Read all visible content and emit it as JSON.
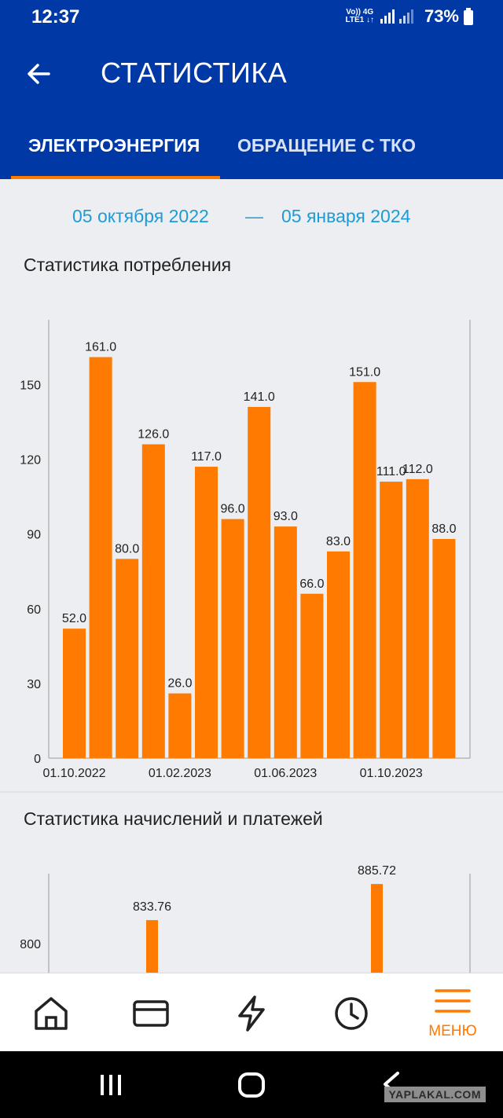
{
  "status_bar": {
    "time": "12:37",
    "net_top": "Vo)) 4G",
    "net_bottom": "LTE1 ↓↑",
    "battery": "73%"
  },
  "app_bar": {
    "title": "СТАТИСТИКА",
    "tabs": [
      {
        "label": "ЭЛЕКТРОЭНЕРГИЯ",
        "active": true
      },
      {
        "label": "ОБРАЩЕНИЕ С ТКО",
        "active": false
      }
    ]
  },
  "date_range": {
    "start": "05 октября 2022",
    "separator": "—",
    "end": "05 января 2024"
  },
  "sections": {
    "consumption_title": "Статистика потребления",
    "payments_title": "Статистика начислений и платежей"
  },
  "chart_data": [
    {
      "type": "bar",
      "values": [
        52.0,
        161.0,
        80.0,
        126.0,
        26.0,
        117.0,
        96.0,
        141.0,
        93.0,
        66.0,
        83.0,
        151.0,
        111.0,
        112.0,
        88.0
      ],
      "value_labels": [
        "52.0",
        "161.0",
        "80.0",
        "126.0",
        "26.0",
        "117.0",
        "96.0",
        "141.0",
        "93.0",
        "66.0",
        "83.0",
        "151.0",
        "111.0",
        "112.0",
        "88.0"
      ],
      "x_tick_labels": [
        "01.10.2022",
        "01.02.2023",
        "01.06.2023",
        "01.10.2023"
      ],
      "x_tick_indices": [
        0,
        4,
        8,
        12
      ],
      "y_ticks": [
        0,
        30,
        60,
        90,
        120,
        150
      ],
      "ylim": [
        0,
        176
      ],
      "color": "#ff7a00",
      "grid": false
    },
    {
      "type": "bar",
      "values": [
        833.76,
        885.72
      ],
      "value_labels": [
        "833.76",
        "885.72"
      ],
      "y_ticks": [
        800
      ],
      "color": "#ff7a00",
      "grid": false
    }
  ],
  "bottom_nav": {
    "items": [
      "home-icon",
      "card-icon",
      "lightning-icon",
      "clock-icon"
    ],
    "menu_label": "МЕНЮ"
  },
  "watermark": "YAPLAKAL.COM"
}
